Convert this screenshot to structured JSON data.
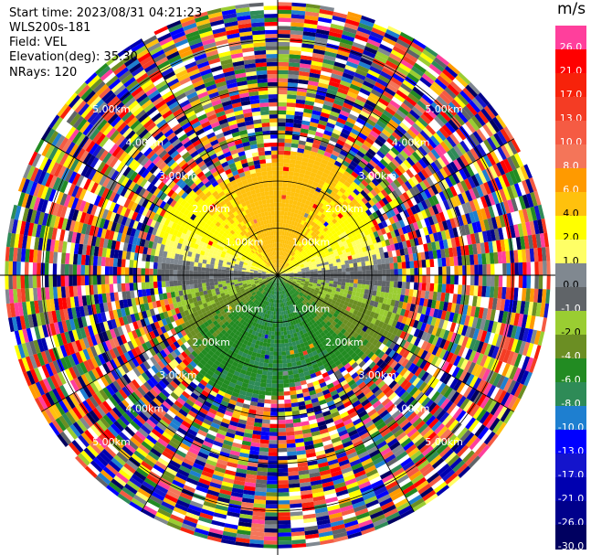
{
  "info": {
    "start_time": "Start time: 2023/08/31 04:21:23",
    "device": "WLS200s-181",
    "field": "Field: VEL",
    "elevation": "Elevation(deg): 35.30",
    "nrays": "NRays: 120"
  },
  "colorbar": {
    "unit": "m/s",
    "levels": [
      {
        "label": "26.0",
        "color": "#ff3f9c",
        "text": "#ffffff"
      },
      {
        "label": "21.0",
        "color": "#ff0000",
        "text": "#ffffff"
      },
      {
        "label": "17.0",
        "color": "#f7220a",
        "text": "#ffffff"
      },
      {
        "label": "13.0",
        "color": "#f43c24",
        "text": "#ffffff"
      },
      {
        "label": "10.0",
        "color": "#f55b43",
        "text": "#ffffff"
      },
      {
        "label": "8.0",
        "color": "#f47559",
        "text": "#ffffff"
      },
      {
        "label": "6.0",
        "color": "#ff9a00",
        "text": "#ffffff"
      },
      {
        "label": "4.0",
        "color": "#ffc10d",
        "text": "#000000"
      },
      {
        "label": "2.0",
        "color": "#ffff00",
        "text": "#000000"
      },
      {
        "label": "1.0",
        "color": "#ffff66",
        "text": "#000000"
      },
      {
        "label": "0.0",
        "color": "#808890",
        "text": "#000000"
      },
      {
        "label": "-1.0",
        "color": "#606468",
        "text": "#ffffff"
      },
      {
        "label": "-2.0",
        "color": "#9acd32",
        "text": "#000000"
      },
      {
        "label": "-4.0",
        "color": "#6b8e23",
        "text": "#ffffff"
      },
      {
        "label": "-6.0",
        "color": "#228b22",
        "text": "#ffffff"
      },
      {
        "label": "-8.0",
        "color": "#2e8b57",
        "text": "#ffffff"
      },
      {
        "label": "-10.0",
        "color": "#1e7fd0",
        "text": "#ffffff"
      },
      {
        "label": "-13.0",
        "color": "#0000ff",
        "text": "#ffffff"
      },
      {
        "label": "-17.0",
        "color": "#1414cc",
        "text": "#ffffff"
      },
      {
        "label": "-21.0",
        "color": "#0000b0",
        "text": "#ffffff"
      },
      {
        "label": "-26.0",
        "color": "#00008b",
        "text": "#ffffff"
      },
      {
        "label": "-30.0",
        "color": "#000060",
        "text": "#ffffff"
      }
    ]
  },
  "chart_data": {
    "type": "heatmap",
    "projection": "polar PPI",
    "field": "VEL",
    "units": "m/s",
    "nrays": 120,
    "range_rings_km": [
      1.0,
      2.0,
      3.0,
      4.0,
      5.0
    ],
    "ring_labels": [
      "1.00km",
      "2.00km",
      "3.00km",
      "4.00km",
      "5.00km"
    ],
    "max_range_km": 5.8,
    "spokes_deg": [
      0,
      30,
      60,
      90,
      120,
      150,
      180,
      210,
      240,
      270,
      300,
      330
    ],
    "pattern": [
      {
        "region": "north, within about 2.2 km",
        "velocity": "4 to 6 m/s"
      },
      {
        "region": "northeast and northwest, within about 2.6 km",
        "velocity": "1 to 4 m/s"
      },
      {
        "region": "east-west band near the center",
        "velocity": "0 to -1 m/s"
      },
      {
        "region": "south, within about 2.4 km",
        "velocity": "-2 to -8 m/s"
      },
      {
        "region": "beyond about 2.6 km",
        "velocity": "noise, all levels from -30 to 26 m/s"
      }
    ],
    "grid": true
  }
}
